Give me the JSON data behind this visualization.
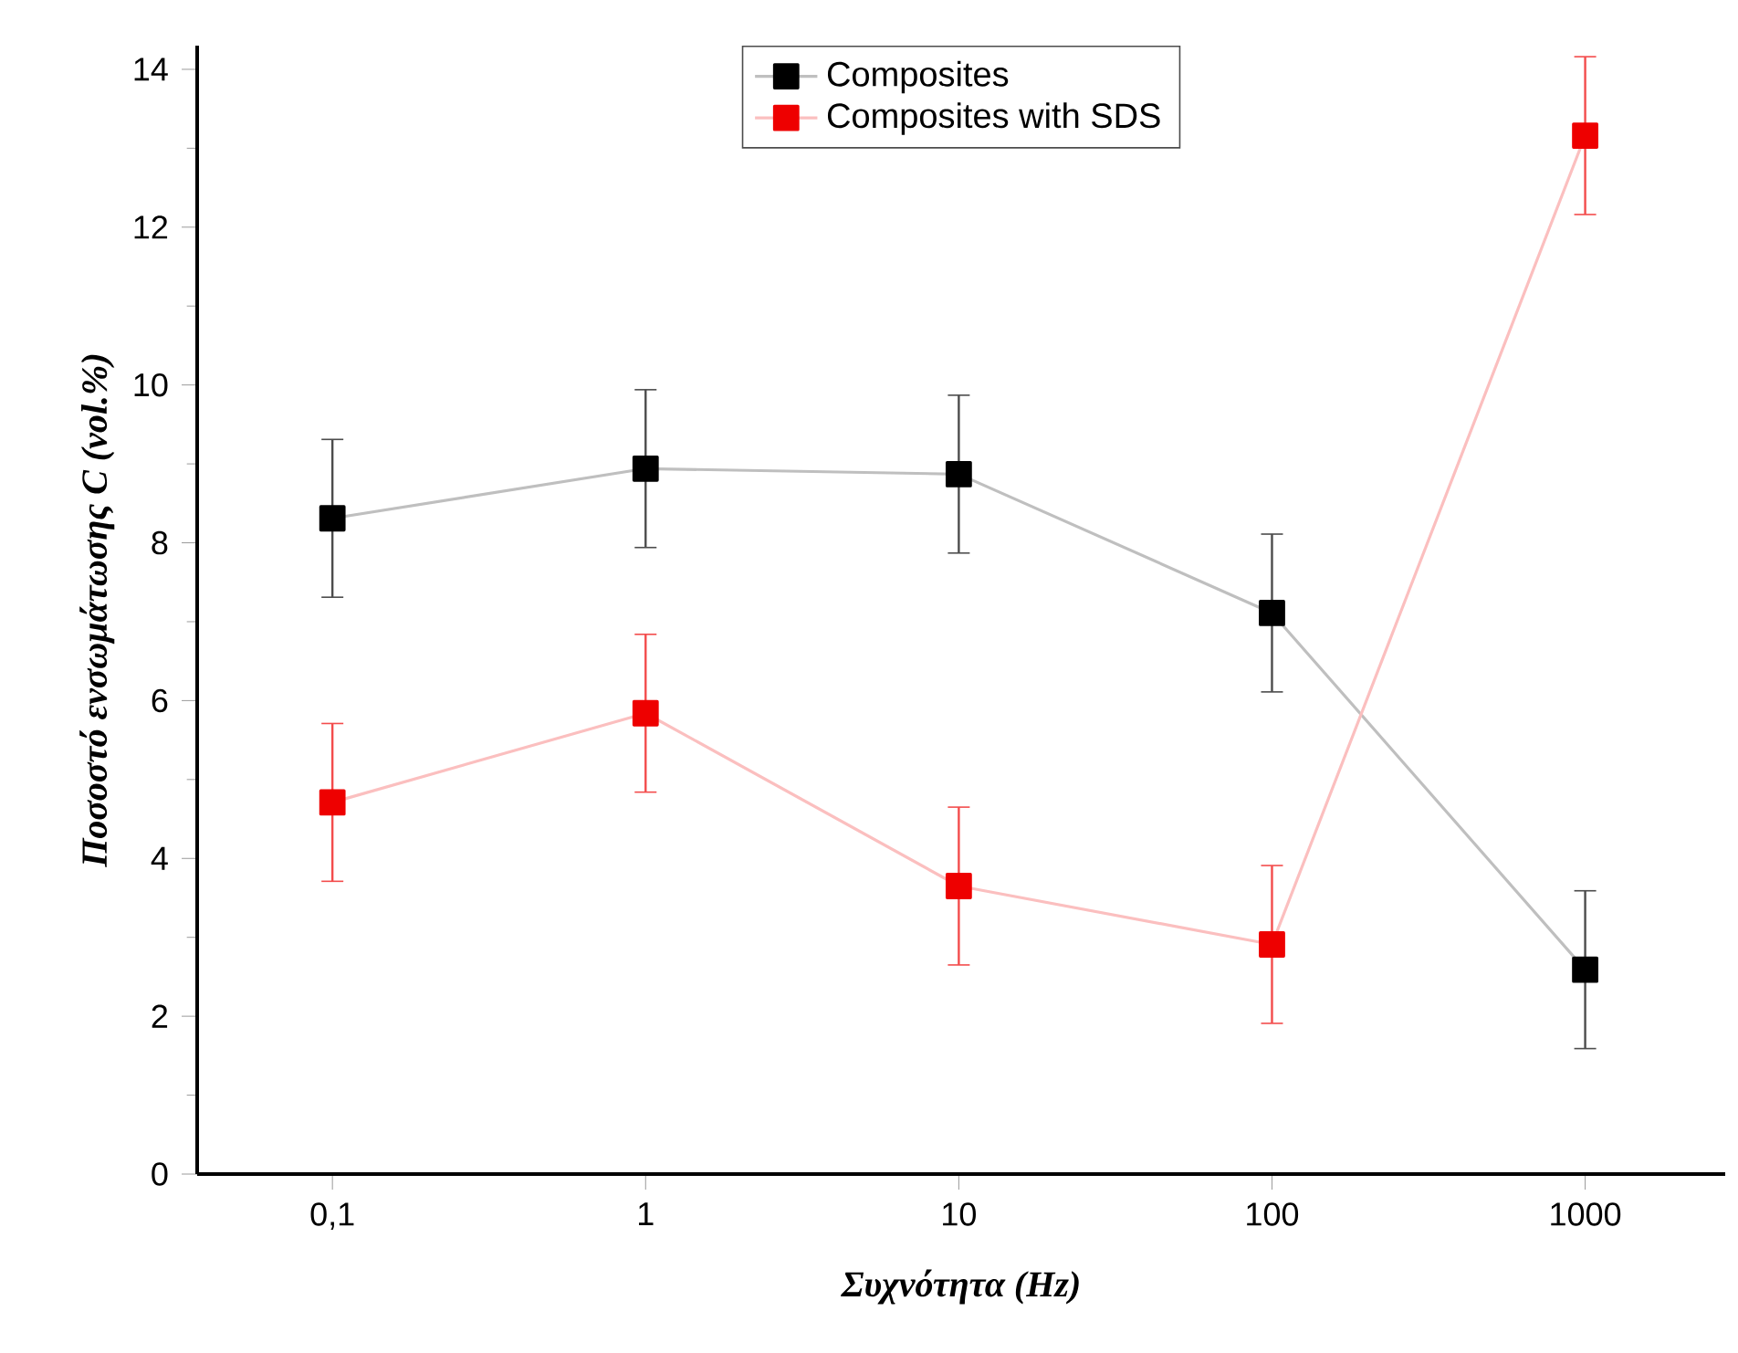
{
  "chart_data": {
    "type": "line",
    "xlabel": "Συχνότητα (Hz)",
    "ylabel": "Ποσοστό ενσωμάτωσης C (vol.%)",
    "log": "x",
    "x": [
      0.1,
      1,
      10,
      100,
      1000
    ],
    "xlim": [
      0.037,
      2800
    ],
    "xticks": [
      {
        "value": 0.1,
        "label": "0,1"
      },
      1,
      10,
      100,
      1000
    ],
    "ylim": [
      0,
      14.3
    ],
    "yticks": [
      0,
      2,
      4,
      6,
      8,
      10,
      12,
      14
    ],
    "series": [
      {
        "name": "Composites",
        "color": "#000000",
        "values": [
          8.31,
          8.94,
          8.87,
          7.11,
          2.59
        ],
        "errors": [
          1,
          1,
          1,
          1,
          1
        ]
      },
      {
        "name": "Composites with SDS",
        "color": "#ee0000",
        "values": [
          4.71,
          5.84,
          3.65,
          2.91,
          13.16
        ],
        "errors": [
          1,
          1,
          1,
          1,
          1
        ]
      }
    ],
    "marker": "square",
    "legend": "top",
    "grid": false
  }
}
